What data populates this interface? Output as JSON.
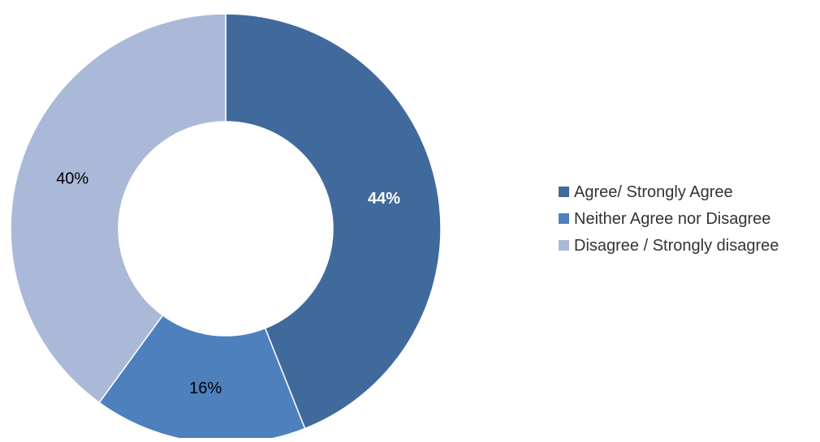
{
  "chart_data": {
    "type": "pie",
    "title": "",
    "donut": true,
    "categories": [
      "Agree/ Strongly Agree",
      "Neither Agree nor Disagree",
      "Disagree / Strongly disagree"
    ],
    "values": [
      44,
      16,
      40
    ],
    "data_labels": [
      "44%",
      "16%",
      "40%"
    ],
    "colors": [
      "#416a9c",
      "#4e80bd",
      "#aab9d8"
    ],
    "label_colors": [
      "#ffffff",
      "#000000",
      "#000000"
    ],
    "label_bold": [
      true,
      false,
      false
    ],
    "legend_position": "right"
  }
}
